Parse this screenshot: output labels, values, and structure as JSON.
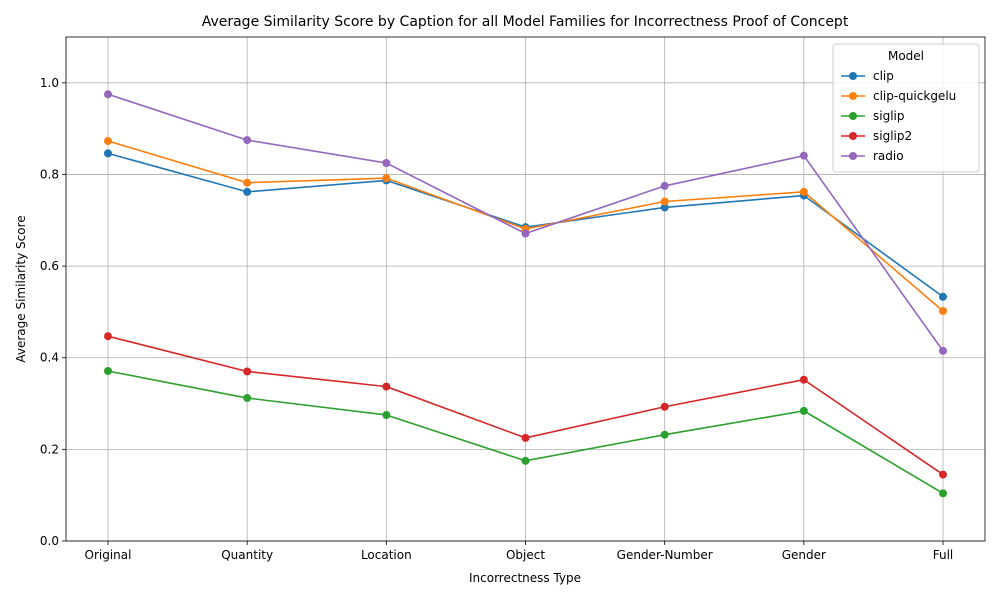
{
  "chart_data": {
    "type": "line",
    "title": "Average Similarity Score by Caption for all Model Families for Incorrectness Proof of Concept",
    "xlabel": "Incorrectness Type",
    "ylabel": "Average Similarity Score",
    "categories": [
      "Original",
      "Quantity",
      "Location",
      "Object",
      "Gender-Number",
      "Gender",
      "Full"
    ],
    "ylim": [
      0,
      1.1
    ],
    "yticks": [
      0.0,
      0.2,
      0.4,
      0.6,
      0.8,
      1.0
    ],
    "ytick_labels": [
      "0.0",
      "0.2",
      "0.4",
      "0.6",
      "0.8",
      "1.0"
    ],
    "grid": true,
    "legend": {
      "title": "Model",
      "placement": "top-right"
    },
    "series": [
      {
        "name": "clip",
        "color": "#1f77b4",
        "values": [
          0.846,
          0.762,
          0.787,
          0.685,
          0.728,
          0.754,
          0.533
        ]
      },
      {
        "name": "clip-quickgelu",
        "color": "#ff7f0e",
        "values": [
          0.873,
          0.782,
          0.792,
          0.681,
          0.741,
          0.762,
          0.502
        ]
      },
      {
        "name": "siglip",
        "color": "#2ca02c",
        "values": [
          0.371,
          0.312,
          0.275,
          0.175,
          0.232,
          0.284,
          0.104
        ]
      },
      {
        "name": "siglip2",
        "color": "#d62728",
        "values": [
          0.447,
          0.37,
          0.337,
          0.225,
          0.293,
          0.352,
          0.145
        ]
      },
      {
        "name": "radio",
        "color": "#9467bd",
        "values": [
          0.975,
          0.875,
          0.825,
          0.671,
          0.775,
          0.841,
          0.415
        ]
      }
    ]
  }
}
